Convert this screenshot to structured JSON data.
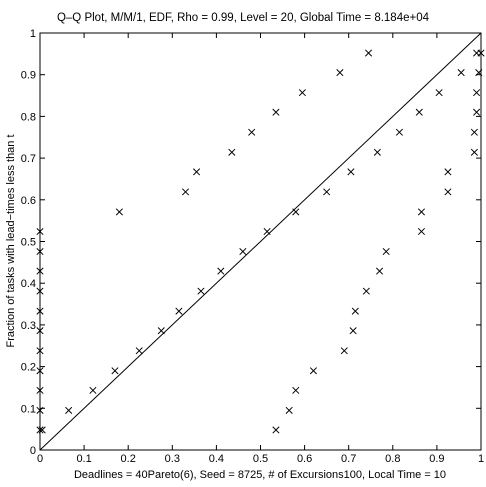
{
  "chart_data": {
    "type": "scatter",
    "title": "Q–Q Plot, M/M/1, EDF, Rho = 0.99, Level = 20,  Global Time = 8.184e+04",
    "xlabel": "Deadlines = 40Pareto(6), Seed = 8725, # of Excursions100, Local Time = 10",
    "ylabel": "Fraction of tasks with lead−times less than t",
    "xlim": [
      0,
      1
    ],
    "ylim": [
      0,
      1
    ],
    "xticks": [
      "0",
      "0.1",
      "0.2",
      "0.3",
      "0.4",
      "0.5",
      "0.6",
      "0.7",
      "0.8",
      "0.9",
      "1"
    ],
    "yticks": [
      "0",
      "0.1",
      "0.2",
      "0.3",
      "0.4",
      "0.5",
      "0.6",
      "0.7",
      "0.8",
      "0.9",
      "1"
    ],
    "grid": false,
    "legend": "none",
    "marker": "x",
    "reference_line": {
      "x": [
        0,
        1
      ],
      "y": [
        0,
        1
      ]
    },
    "points": [
      [
        0.0,
        0.048
      ],
      [
        0.0,
        0.095
      ],
      [
        0.0,
        0.143
      ],
      [
        0.0,
        0.19
      ],
      [
        0.0,
        0.238
      ],
      [
        0.0,
        0.286
      ],
      [
        0.0,
        0.333
      ],
      [
        0.0,
        0.381
      ],
      [
        0.0,
        0.429
      ],
      [
        0.0,
        0.476
      ],
      [
        0.0,
        0.524
      ],
      [
        0.005,
        0.048
      ],
      [
        0.065,
        0.095
      ],
      [
        0.12,
        0.143
      ],
      [
        0.17,
        0.19
      ],
      [
        0.225,
        0.238
      ],
      [
        0.275,
        0.286
      ],
      [
        0.315,
        0.333
      ],
      [
        0.365,
        0.381
      ],
      [
        0.41,
        0.429
      ],
      [
        0.46,
        0.476
      ],
      [
        0.515,
        0.524
      ],
      [
        0.58,
        0.571
      ],
      [
        0.65,
        0.619
      ],
      [
        0.705,
        0.667
      ],
      [
        0.765,
        0.714
      ],
      [
        0.815,
        0.762
      ],
      [
        0.86,
        0.81
      ],
      [
        0.905,
        0.857
      ],
      [
        0.955,
        0.905
      ],
      [
        0.99,
        0.952
      ],
      [
        0.18,
        0.571
      ],
      [
        0.33,
        0.619
      ],
      [
        0.355,
        0.667
      ],
      [
        0.435,
        0.714
      ],
      [
        0.48,
        0.762
      ],
      [
        0.535,
        0.81
      ],
      [
        0.595,
        0.857
      ],
      [
        0.68,
        0.905
      ],
      [
        0.745,
        0.952
      ],
      [
        0.535,
        0.048
      ],
      [
        0.565,
        0.095
      ],
      [
        0.58,
        0.143
      ],
      [
        0.62,
        0.19
      ],
      [
        0.69,
        0.238
      ],
      [
        0.71,
        0.286
      ],
      [
        0.715,
        0.333
      ],
      [
        0.74,
        0.381
      ],
      [
        0.77,
        0.429
      ],
      [
        0.785,
        0.476
      ],
      [
        0.865,
        0.524
      ],
      [
        0.865,
        0.571
      ],
      [
        0.925,
        0.619
      ],
      [
        0.925,
        0.667
      ],
      [
        0.985,
        0.714
      ],
      [
        0.985,
        0.762
      ],
      [
        0.99,
        0.81
      ],
      [
        0.99,
        0.857
      ],
      [
        0.995,
        0.905
      ],
      [
        1.0,
        0.952
      ]
    ]
  }
}
